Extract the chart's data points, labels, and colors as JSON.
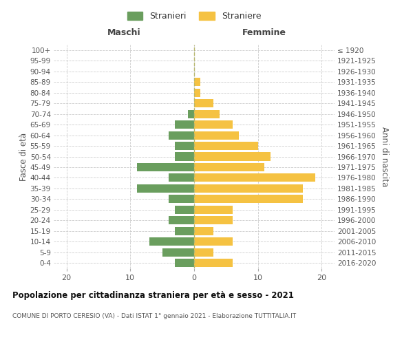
{
  "age_groups": [
    "0-4",
    "5-9",
    "10-14",
    "15-19",
    "20-24",
    "25-29",
    "30-34",
    "35-39",
    "40-44",
    "45-49",
    "50-54",
    "55-59",
    "60-64",
    "65-69",
    "70-74",
    "75-79",
    "80-84",
    "85-89",
    "90-94",
    "95-99",
    "100+"
  ],
  "birth_years": [
    "2016-2020",
    "2011-2015",
    "2006-2010",
    "2001-2005",
    "1996-2000",
    "1991-1995",
    "1986-1990",
    "1981-1985",
    "1976-1980",
    "1971-1975",
    "1966-1970",
    "1961-1965",
    "1956-1960",
    "1951-1955",
    "1946-1950",
    "1941-1945",
    "1936-1940",
    "1931-1935",
    "1926-1930",
    "1921-1925",
    "≤ 1920"
  ],
  "maschi": [
    3,
    5,
    7,
    3,
    4,
    3,
    4,
    9,
    4,
    9,
    3,
    3,
    4,
    3,
    1,
    0,
    0,
    0,
    0,
    0,
    0
  ],
  "femmine": [
    6,
    3,
    6,
    3,
    6,
    6,
    17,
    17,
    19,
    11,
    12,
    10,
    7,
    6,
    4,
    3,
    1,
    1,
    0,
    0,
    0
  ],
  "color_maschi": "#6a9e5e",
  "color_femmine": "#f5c242",
  "title": "Popolazione per cittadinanza straniera per età e sesso - 2021",
  "subtitle": "COMUNE DI PORTO CERESIO (VA) - Dati ISTAT 1° gennaio 2021 - Elaborazione TUTTITALIA.IT",
  "ylabel_left": "Fasce di età",
  "ylabel_right": "Anni di nascita",
  "header_left": "Maschi",
  "header_right": "Femmine",
  "legend_maschi": "Stranieri",
  "legend_femmine": "Straniere",
  "xlim": 22,
  "background_color": "#ffffff",
  "grid_color": "#cccccc"
}
